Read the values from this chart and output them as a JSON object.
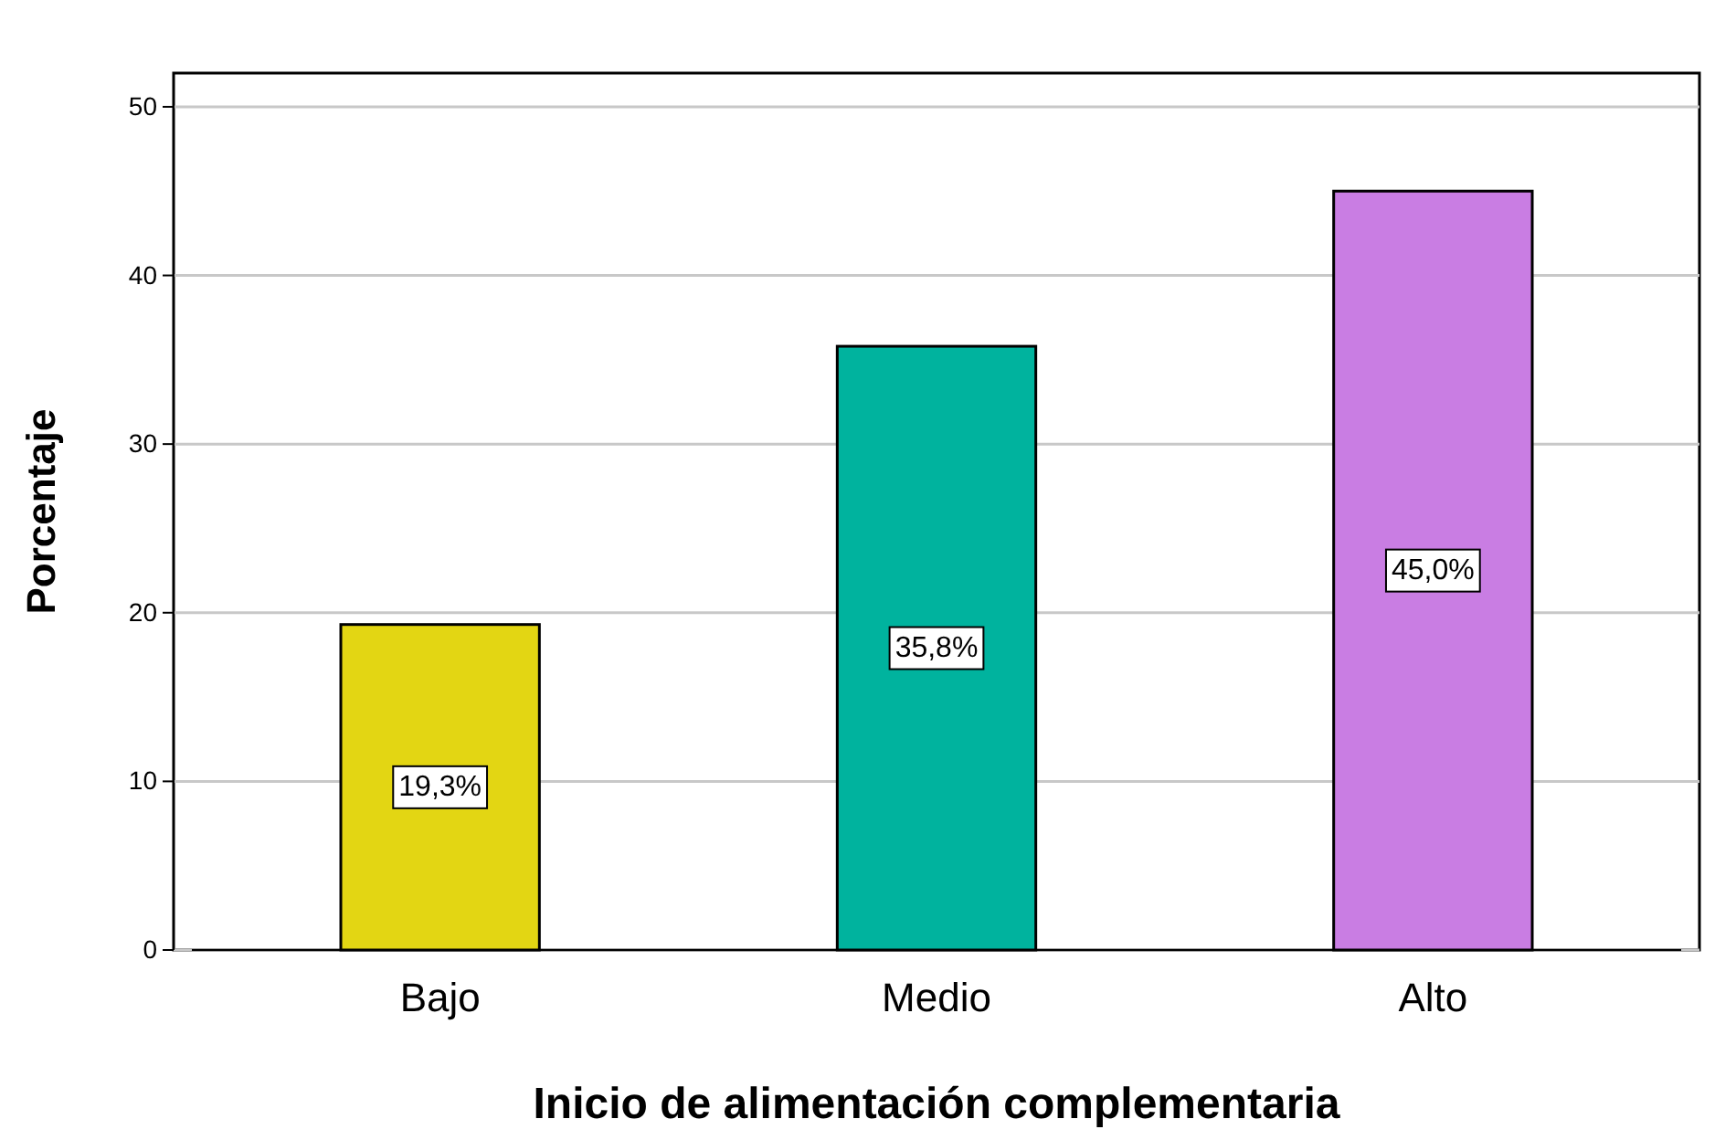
{
  "chart_data": {
    "type": "bar",
    "xlabel": "Inicio de alimentación complementaria",
    "ylabel": "Porcentaje",
    "categories": [
      "Bajo",
      "Medio",
      "Alto"
    ],
    "values": [
      19.3,
      35.8,
      45.0
    ],
    "colors": [
      "#e3d613",
      "#00b39e",
      "#c97de3"
    ],
    "value_labels": [
      "19,3%",
      "35,8%",
      "45,0%"
    ],
    "ylim": [
      0,
      52
    ],
    "yticks": [
      0,
      10,
      20,
      30,
      40,
      50
    ],
    "grid": "y"
  }
}
